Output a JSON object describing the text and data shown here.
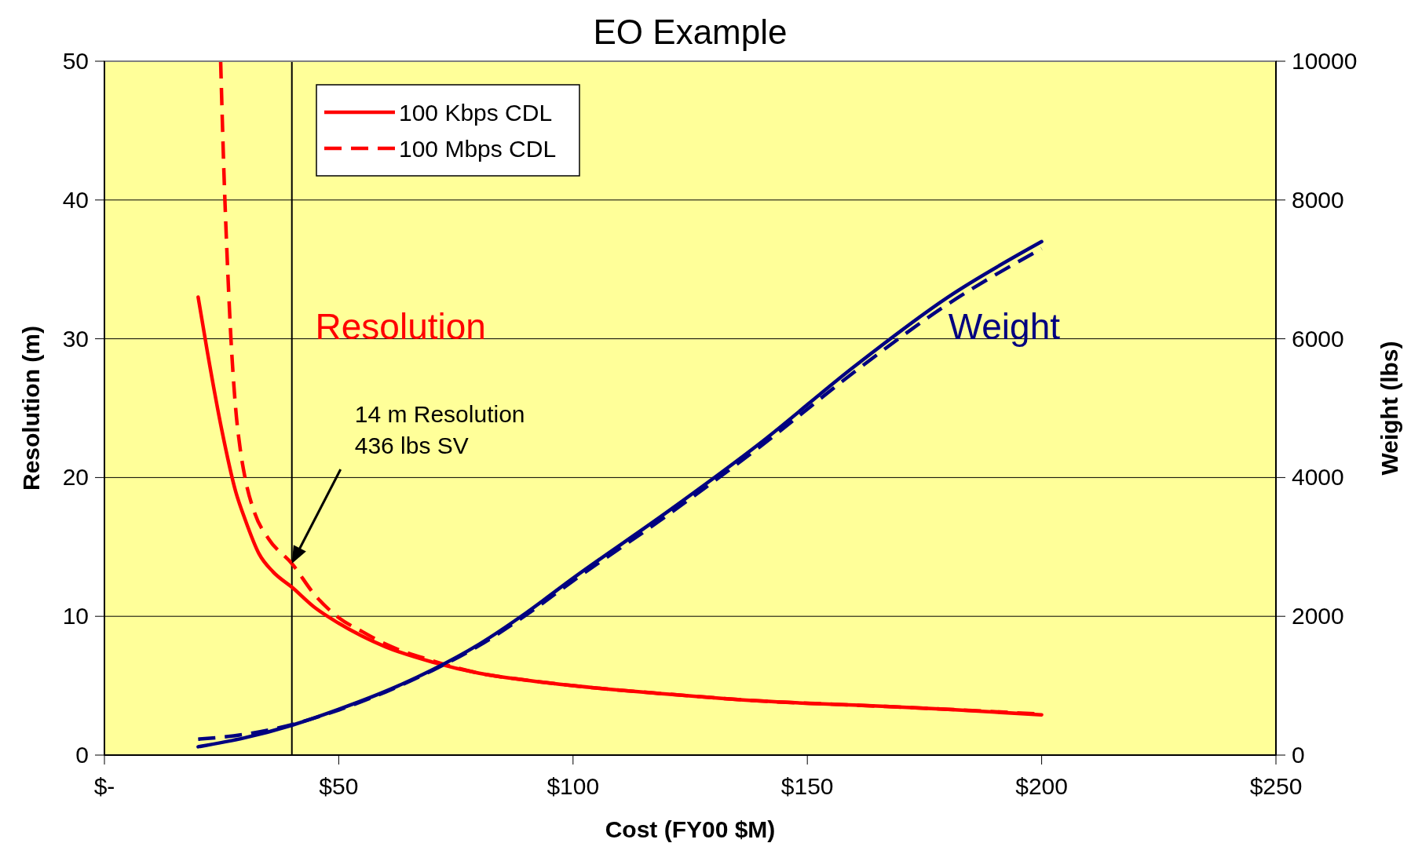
{
  "chart_data": {
    "type": "line",
    "title": "EO Example",
    "xlabel": "Cost (FY00 $M)",
    "ylabel": "Resolution (m)",
    "y2label": "Weight (lbs)",
    "xlim": [
      0,
      250
    ],
    "xticks": [
      {
        "value": 0,
        "label": "$-"
      },
      {
        "value": 50,
        "label": "$50"
      },
      {
        "value": 100,
        "label": "$100"
      },
      {
        "value": 150,
        "label": "$150"
      },
      {
        "value": 200,
        "label": "$200"
      },
      {
        "value": 250,
        "label": "$250"
      }
    ],
    "ylim": [
      0,
      50
    ],
    "yticks": [
      0,
      10,
      20,
      30,
      40,
      50
    ],
    "y2lim": [
      0,
      10000
    ],
    "y2ticks": [
      0,
      2000,
      4000,
      6000,
      8000,
      10000
    ],
    "grid": "y",
    "legend": "top left",
    "series": [
      {
        "name": "100 Kbps CDL",
        "color": "#ff0000",
        "line_style": "solid",
        "x": [
          20,
          22,
          25,
          28,
          30,
          33,
          36,
          40,
          45,
          50,
          60,
          70,
          80,
          90,
          100,
          120,
          140,
          160,
          180,
          200
        ],
        "values": [
          33,
          29,
          23.5,
          19,
          17,
          14.5,
          13.2,
          12.1,
          10.6,
          9.5,
          7.8,
          6.7,
          5.9,
          5.4,
          5.0,
          4.4,
          3.9,
          3.6,
          3.3,
          2.9
        ]
      },
      {
        "name": "100 Mbps CDL",
        "color": "#ff0000",
        "line_style": "dashed",
        "x": [
          24.8,
          25.5,
          26.3,
          27,
          28,
          29,
          30,
          32,
          35,
          40,
          45,
          50,
          55,
          60,
          70,
          80,
          90,
          100,
          120,
          140,
          160,
          180,
          200
        ],
        "values": [
          50,
          42,
          35,
          30,
          25,
          22,
          20,
          17.5,
          15.6,
          13.8,
          11.5,
          9.9,
          8.9,
          8.0,
          6.8,
          5.9,
          5.4,
          5.0,
          4.4,
          3.9,
          3.6,
          3.3,
          2.95
        ]
      },
      {
        "color": "#000080",
        "line_style": "solid",
        "axis": "y2",
        "x": [
          20,
          30,
          40,
          50,
          60,
          70,
          80,
          90,
          100,
          120,
          140,
          160,
          180,
          200
        ],
        "values": [
          120,
          250,
          430,
          660,
          920,
          1230,
          1600,
          2050,
          2550,
          3500,
          4500,
          5600,
          6600,
          7400
        ]
      },
      {
        "color": "#000080",
        "line_style": "dashed",
        "axis": "y2",
        "x": [
          20,
          30,
          40,
          50,
          60,
          70,
          80,
          90,
          100,
          120,
          140,
          160,
          180,
          200
        ],
        "values": [
          230,
          300,
          440,
          650,
          910,
          1220,
          1580,
          2020,
          2510,
          3450,
          4450,
          5520,
          6500,
          7300
        ]
      }
    ],
    "ref_lines": [
      {
        "axis": "x",
        "value": 40,
        "color": "#000000",
        "line_style": "solid"
      }
    ],
    "annotations": [
      "Resolution",
      "Weight",
      "14 m Resolution\n436 lbs SV"
    ]
  }
}
